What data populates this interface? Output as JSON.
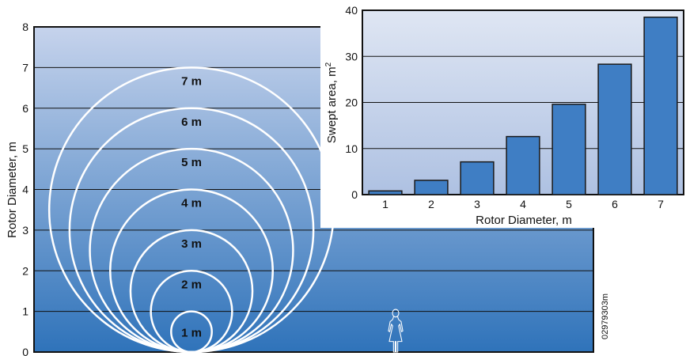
{
  "chart_data": [
    {
      "type": "diagram",
      "ylabel": "Rotor Diameter, m",
      "yticks": [
        "0",
        "1",
        "2",
        "3",
        "4",
        "5",
        "6",
        "7",
        "8"
      ],
      "ylim": [
        0,
        8
      ],
      "grid": true,
      "circles": [
        {
          "diameter": 1,
          "label": "1 m"
        },
        {
          "diameter": 2,
          "label": "2 m"
        },
        {
          "diameter": 3,
          "label": "3 m"
        },
        {
          "diameter": 4,
          "label": "4 m"
        },
        {
          "diameter": 5,
          "label": "5 m"
        },
        {
          "diameter": 6,
          "label": "6 m"
        },
        {
          "diameter": 7,
          "label": "7 m"
        }
      ],
      "reference_figure_height_m": 1.05,
      "reference_figure_icon": "woman-figure-icon",
      "figure_code": "02979303m",
      "colors": {
        "gradient_top": "#c6d3ec",
        "gradient_bottom": "#2f73ba",
        "circles": "#ffffff"
      }
    },
    {
      "type": "bar",
      "xlabel": "Rotor Diameter, m",
      "ylabel_main": "Swept area, m",
      "ylabel_sup": "2",
      "categories": [
        "1",
        "2",
        "3",
        "4",
        "5",
        "6",
        "7"
      ],
      "values": [
        0.8,
        3.1,
        7.1,
        12.6,
        19.6,
        28.3,
        38.5
      ],
      "yticks": [
        "0",
        "10",
        "20",
        "30",
        "40"
      ],
      "ylim": [
        0,
        40
      ],
      "grid": true,
      "colors": {
        "bar": "#3f7ec4",
        "bar_stroke": "#1a1a1a",
        "gradient_top": "#dfe6f3",
        "gradient_bottom": "#aec1e2"
      }
    }
  ]
}
